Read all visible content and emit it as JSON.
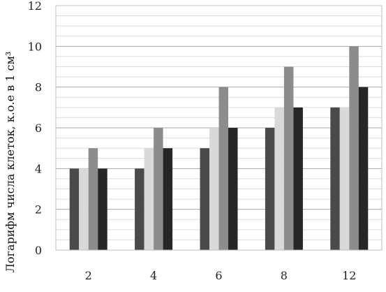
{
  "chart_data": {
    "type": "bar",
    "title": "",
    "xlabel": "",
    "ylabel": "Логарифм числа клеток, к.о.е в 1 см³",
    "categories": [
      "2",
      "4",
      "6",
      "8",
      "12"
    ],
    "series": [
      {
        "color": "#4a4a4a",
        "values": [
          4,
          4,
          5,
          6,
          7
        ]
      },
      {
        "color": "#d9d9d9",
        "values": [
          4,
          5,
          6,
          7,
          7
        ]
      },
      {
        "color": "#8c8c8c",
        "values": [
          5,
          6,
          8,
          9,
          10
        ]
      },
      {
        "color": "#262626",
        "values": [
          4,
          5,
          6,
          7,
          8
        ]
      }
    ],
    "ylim": [
      0,
      12
    ],
    "yticks": [
      0,
      2,
      4,
      6,
      8,
      10,
      12
    ],
    "grid": true,
    "legend": "none"
  }
}
